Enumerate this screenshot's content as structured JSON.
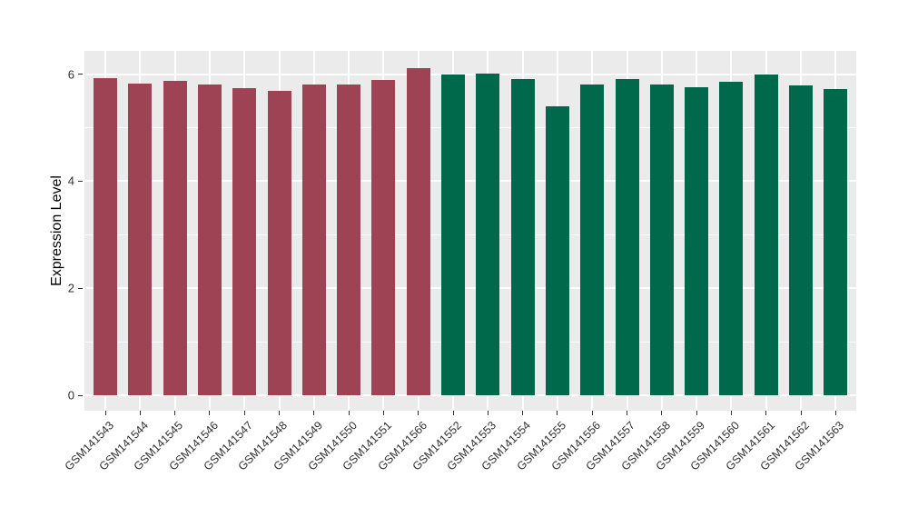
{
  "figure": {
    "background": "#FFFFFF",
    "panel_background": "#EBEBEB",
    "gridline_color": "#FFFFFF",
    "group_colors": {
      "left_group": "#9D4353",
      "right_group": "#00694B"
    }
  },
  "chart_data": {
    "type": "bar",
    "title": "",
    "xlabel": "",
    "ylabel": "Expression Level",
    "y_ticks": [
      0,
      2,
      4,
      6
    ],
    "y_tick_labels": [
      "0",
      "2",
      "4",
      "6"
    ],
    "ylim": [
      0,
      6.43
    ],
    "grid": true,
    "legend_position": "none",
    "categories": [
      "GSM141543",
      "GSM141544",
      "GSM141545",
      "GSM141546",
      "GSM141547",
      "GSM141548",
      "GSM141549",
      "GSM141550",
      "GSM141551",
      "GSM141566",
      "GSM141552",
      "GSM141553",
      "GSM141554",
      "GSM141555",
      "GSM141556",
      "GSM141557",
      "GSM141558",
      "GSM141559",
      "GSM141560",
      "GSM141561",
      "GSM141562",
      "GSM141563"
    ],
    "values": [
      5.93,
      5.83,
      5.88,
      5.81,
      5.74,
      5.68,
      5.81,
      5.81,
      5.89,
      6.12,
      6.0,
      6.01,
      5.91,
      5.4,
      5.8,
      5.91,
      5.8,
      5.76,
      5.86,
      6.0,
      5.79,
      5.72
    ],
    "colors": [
      "#9D4353",
      "#9D4353",
      "#9D4353",
      "#9D4353",
      "#9D4353",
      "#9D4353",
      "#9D4353",
      "#9D4353",
      "#9D4353",
      "#9D4353",
      "#00694B",
      "#00694B",
      "#00694B",
      "#00694B",
      "#00694B",
      "#00694B",
      "#00694B",
      "#00694B",
      "#00694B",
      "#00694B",
      "#00694B",
      "#00694B"
    ]
  }
}
